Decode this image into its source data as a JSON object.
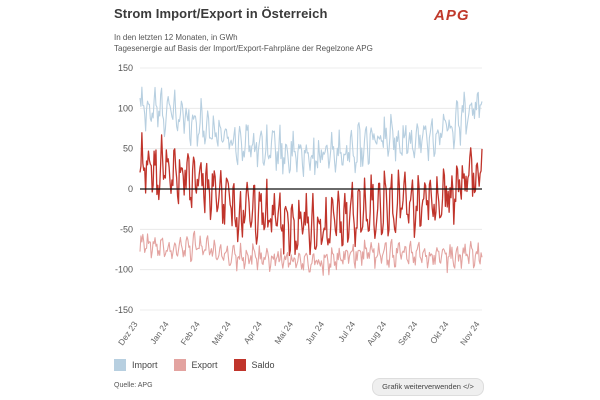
{
  "header": {
    "title": "Strom Import/Export in Österreich",
    "subtitle": "In den letzten 12 Monaten, in GWh",
    "subtitle2": "Tagesenergie auf Basis der Import/Export-Fahrpläne der Regelzone APG",
    "logo_text": "APG"
  },
  "footer": {
    "source": "Quelle: APG",
    "reuse_label": "Grafik weiterverwenden </>"
  },
  "legend": [
    {
      "label": "Import",
      "color": "#b7cfe0"
    },
    {
      "label": "Export",
      "color": "#e3a3a0"
    },
    {
      "label": "Saldo",
      "color": "#c0342b"
    }
  ],
  "chart_data": {
    "type": "line",
    "title": "Strom Import/Export in Österreich",
    "xlabel": "",
    "ylabel": "GWh",
    "ylim": [
      -150,
      150
    ],
    "yticks": [
      150,
      100,
      50,
      0,
      -50,
      -100,
      -150
    ],
    "x_ticks": [
      "Dez 23",
      "Jan 24",
      "Feb 24",
      "Mär 24",
      "Apr 24",
      "Mai 24",
      "Jun 24",
      "Jul 24",
      "Aug 24",
      "Sep 24",
      "Okt 24",
      "Nov 24"
    ],
    "x_tick_positions": [
      0,
      1,
      2,
      3,
      4,
      5,
      6,
      7,
      8,
      9,
      10,
      11
    ],
    "n_points": 365,
    "series": [
      {
        "name": "Import",
        "color": "#b7cfe0",
        "monthly_levels": [
          100,
          95,
          80,
          60,
          55,
          40,
          40,
          50,
          65,
          60,
          75,
          110
        ],
        "amplitude": 25
      },
      {
        "name": "Export",
        "color": "#e3a3a0",
        "monthly_levels": [
          -70,
          -75,
          -70,
          -85,
          -85,
          -90,
          -90,
          -80,
          -80,
          -80,
          -85,
          -80
        ],
        "amplitude": 15
      },
      {
        "name": "Saldo",
        "color": "#c0342b",
        "monthly_levels": [
          25,
          25,
          10,
          -25,
          -30,
          -50,
          -50,
          -30,
          -15,
          -20,
          -10,
          30
        ],
        "amplitude": 35
      }
    ]
  }
}
